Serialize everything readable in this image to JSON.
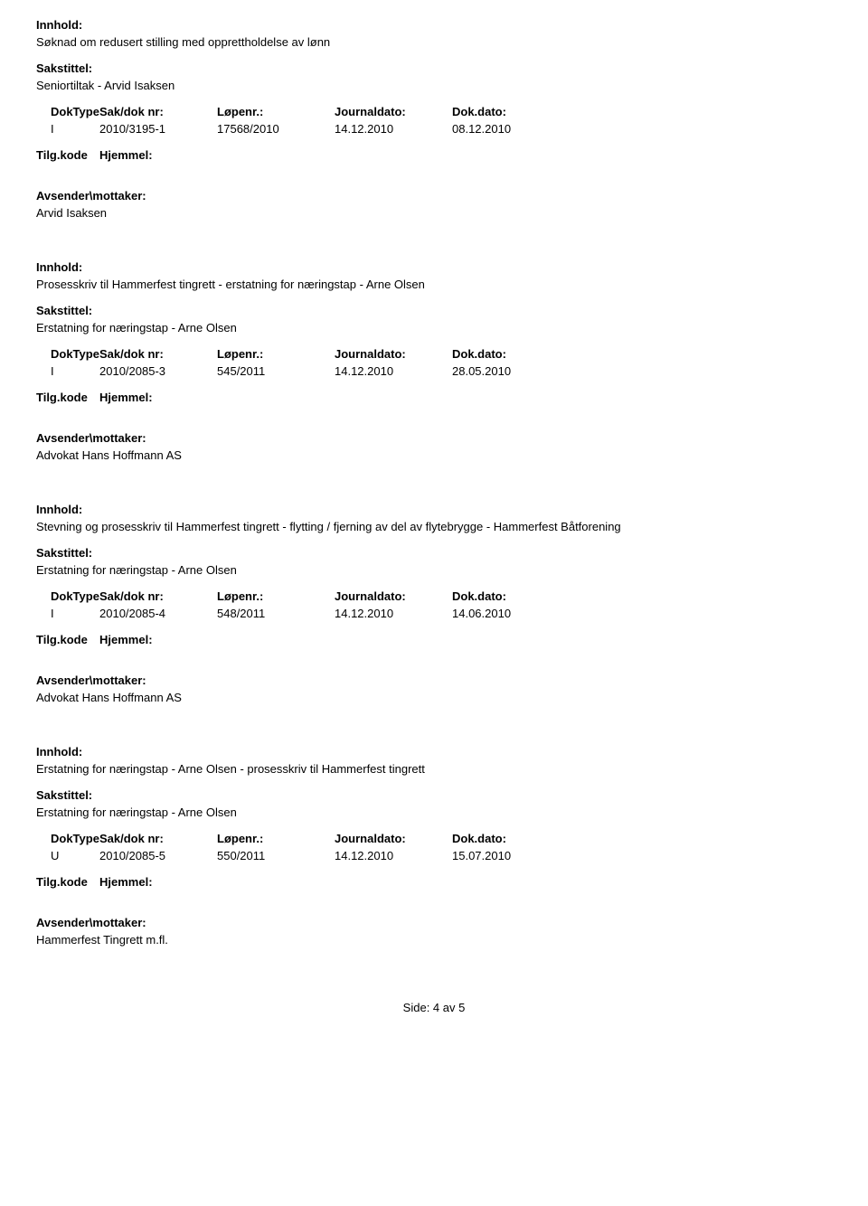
{
  "labels": {
    "innhold": "Innhold:",
    "sakstittel": "Sakstittel:",
    "doktype": "DokType",
    "sakdok": "Sak/dok nr:",
    "lopenr": "Løpenr.:",
    "journaldato": "Journaldato:",
    "dokdato": "Dok.dato:",
    "tilgkode": "Tilg.kode",
    "hjemmel": "Hjemmel:",
    "avsender": "Avsender\\mottaker:"
  },
  "records": [
    {
      "innhold": "Søknad om redusert stilling med opprettholdelse av lønn",
      "sakstittel": "Seniortiltak - Arvid Isaksen",
      "doktype": "I",
      "sakdok": "2010/3195-1",
      "lopenr": "17568/2010",
      "journaldato": "14.12.2010",
      "dokdato": "08.12.2010",
      "avsender": "Arvid Isaksen"
    },
    {
      "innhold": "Prosesskriv til Hammerfest tingrett - erstatning for næringstap - Arne Olsen",
      "sakstittel": "Erstatning for næringstap - Arne Olsen",
      "doktype": "I",
      "sakdok": "2010/2085-3",
      "lopenr": "545/2011",
      "journaldato": "14.12.2010",
      "dokdato": "28.05.2010",
      "avsender": "Advokat Hans Hoffmann AS"
    },
    {
      "innhold": "Stevning og prosesskriv til Hammerfest tingrett - flytting / fjerning av del av flytebrygge - Hammerfest Båtforening",
      "sakstittel": "Erstatning for næringstap - Arne Olsen",
      "doktype": "I",
      "sakdok": "2010/2085-4",
      "lopenr": "548/2011",
      "journaldato": "14.12.2010",
      "dokdato": "14.06.2010",
      "avsender": "Advokat Hans Hoffmann AS"
    },
    {
      "innhold": "Erstatning for næringstap - Arne Olsen - prosesskriv til Hammerfest tingrett",
      "sakstittel": "Erstatning for næringstap - Arne Olsen",
      "doktype": "U",
      "sakdok": "2010/2085-5",
      "lopenr": "550/2011",
      "journaldato": "14.12.2010",
      "dokdato": "15.07.2010",
      "avsender": "Hammerfest Tingrett m.fl."
    }
  ],
  "footer": "Side: 4 av 5"
}
